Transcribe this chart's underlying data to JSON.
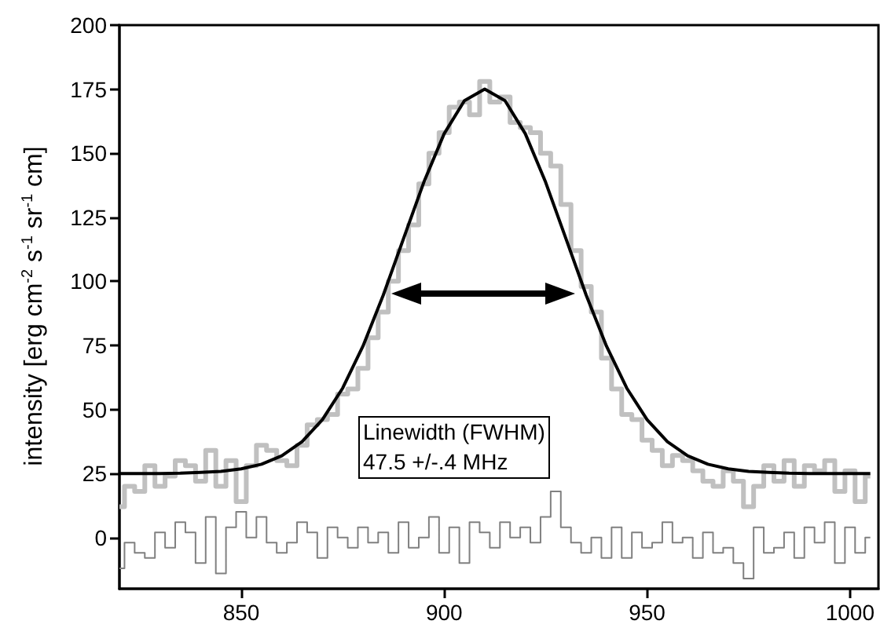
{
  "chart_data": {
    "type": "line",
    "ylabel": "intensity [erg cm$^{-2}$ s$^{-1}$ sr$^{-1}$ cm]",
    "xlim": [
      820,
      1007
    ],
    "xticks": [
      850,
      900,
      950,
      1000
    ],
    "ylim": [
      -20,
      200
    ],
    "yticks": [
      0,
      25,
      50,
      75,
      100,
      125,
      150,
      175,
      200
    ],
    "grid": false,
    "marker": "none",
    "annotations": [
      "Linewidth (FWHM)\n47.5 +/-.4 MHz"
    ],
    "series": [
      {
        "type": "step",
        "color": "#c0c0c0",
        "x": [
          820,
          822.5,
          825,
          827.5,
          830,
          832.5,
          835,
          837.5,
          840,
          842.5,
          845,
          847.5,
          850,
          852.5,
          855,
          857.5,
          860,
          862.5,
          865,
          867.5,
          870,
          872.5,
          875,
          877.5,
          880,
          882.5,
          885,
          887.5,
          890,
          892.5,
          895,
          897.5,
          900,
          902.5,
          905,
          907.5,
          910,
          912.5,
          915,
          917.5,
          920,
          922.5,
          925,
          927.5,
          930,
          932.5,
          935,
          937.5,
          940,
          942.5,
          945,
          947.5,
          950,
          952.5,
          955,
          957.5,
          960,
          962.5,
          965,
          967.5,
          970,
          972.5,
          975,
          977.5,
          980,
          982.5,
          985,
          987.5,
          990,
          992.5,
          995,
          997.5,
          1000,
          1002.5,
          1005
        ],
        "values": [
          12,
          20,
          18,
          28,
          20,
          24,
          30,
          28,
          22,
          34,
          20,
          30,
          14,
          28,
          36,
          34,
          30,
          28,
          36,
          44,
          46,
          48,
          56,
          58,
          66,
          78,
          88,
          100,
          112,
          122,
          138,
          150,
          158,
          168,
          170,
          165,
          178,
          170,
          172,
          162,
          160,
          158,
          150,
          145,
          130,
          112,
          98,
          88,
          70,
          58,
          48,
          46,
          38,
          34,
          28,
          32,
          30,
          26,
          22,
          20,
          26,
          22,
          12,
          20,
          28,
          22,
          30,
          20,
          28,
          26,
          30,
          18,
          26,
          14,
          24
        ]
      },
      {
        "color": "#000000",
        "x": [
          820,
          825,
          830,
          835,
          840,
          845,
          850,
          855,
          860,
          865,
          870,
          875,
          880,
          885,
          890,
          895,
          900,
          905,
          910,
          915,
          920,
          925,
          930,
          935,
          940,
          945,
          950,
          955,
          960,
          965,
          970,
          975,
          980,
          985,
          990,
          995,
          1000,
          1005
        ],
        "values": [
          25,
          25,
          25,
          25.1,
          25.4,
          25.8,
          26.8,
          28.6,
          31.9,
          37.4,
          46,
          58.3,
          74.7,
          94.6,
          116.7,
          138.7,
          157.6,
          170.5,
          175,
          170.5,
          157.6,
          138.7,
          116.7,
          94.6,
          74.7,
          58.3,
          46,
          37.4,
          31.9,
          28.6,
          26.8,
          25.8,
          25.4,
          25.1,
          25,
          25,
          25,
          25
        ]
      },
      {
        "type": "step",
        "color": "#808080",
        "x": [
          820,
          822.5,
          825,
          827.5,
          830,
          832.5,
          835,
          837.5,
          840,
          842.5,
          845,
          847.5,
          850,
          852.5,
          855,
          857.5,
          860,
          862.5,
          865,
          867.5,
          870,
          872.5,
          875,
          877.5,
          880,
          882.5,
          885,
          887.5,
          890,
          892.5,
          895,
          897.5,
          900,
          902.5,
          905,
          907.5,
          910,
          912.5,
          915,
          917.5,
          920,
          922.5,
          925,
          927.5,
          930,
          932.5,
          935,
          937.5,
          940,
          942.5,
          945,
          947.5,
          950,
          952.5,
          955,
          957.5,
          960,
          962.5,
          965,
          967.5,
          970,
          972.5,
          975,
          977.5,
          980,
          982.5,
          985,
          987.5,
          990,
          992.5,
          995,
          997.5,
          1000,
          1002.5,
          1005
        ],
        "values": [
          -12,
          -2,
          -6,
          -8,
          2,
          -4,
          6,
          2,
          -10,
          8,
          -14,
          4,
          10,
          0,
          8,
          -2,
          -6,
          -2,
          6,
          2,
          -8,
          4,
          0,
          -4,
          4,
          -2,
          2,
          -6,
          6,
          -4,
          0,
          8,
          -6,
          4,
          -10,
          6,
          2,
          -4,
          6,
          0,
          4,
          -2,
          8,
          18,
          4,
          -2,
          -6,
          0,
          -8,
          4,
          -8,
          2,
          -4,
          -2,
          6,
          -2,
          0,
          -8,
          2,
          -6,
          -4,
          -10,
          -16,
          4,
          -6,
          -4,
          2,
          -8,
          4,
          -2,
          6,
          -10,
          4,
          -6,
          0
        ]
      }
    ]
  }
}
